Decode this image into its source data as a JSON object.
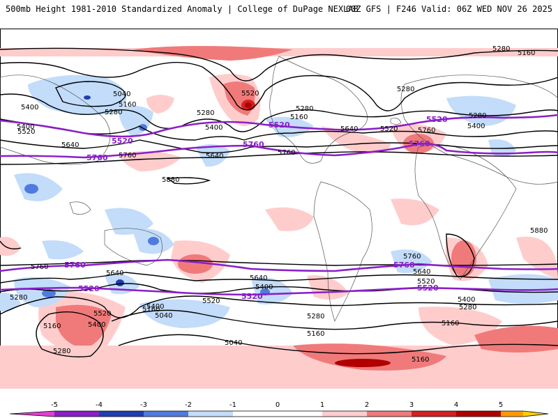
{
  "header": {
    "left_title": "500mb Height 1981-2010 Standardized Anomaly | College of DuPage NEXLAB",
    "right_title": "00Z GFS | F246 Valid: 06Z WED NOV 26 2025"
  },
  "map": {
    "contour_labels": [
      "5280",
      "5160",
      "5040",
      "5520",
      "5400",
      "5640",
      "5760",
      "5880"
    ],
    "labels": [
      {
        "text": "5280",
        "kind": "black"
      },
      {
        "text": "5160",
        "kind": "black"
      },
      {
        "text": "5040",
        "kind": "black"
      },
      {
        "text": "5160",
        "kind": "black"
      },
      {
        "text": "5280",
        "kind": "black"
      },
      {
        "text": "5400",
        "kind": "black"
      },
      {
        "text": "5520",
        "kind": "black"
      },
      {
        "text": "5640",
        "kind": "black"
      },
      {
        "text": "5520",
        "kind": "std"
      },
      {
        "text": "5760",
        "kind": "std"
      },
      {
        "text": "5760",
        "kind": "black"
      },
      {
        "text": "5880",
        "kind": "black"
      },
      {
        "text": "5520",
        "kind": "black"
      },
      {
        "text": "5280",
        "kind": "black"
      },
      {
        "text": "5400",
        "kind": "black"
      },
      {
        "text": "5400",
        "kind": "black"
      },
      {
        "text": "5640",
        "kind": "black"
      },
      {
        "text": "5760",
        "kind": "black"
      },
      {
        "text": "5520",
        "kind": "std"
      },
      {
        "text": "5640",
        "kind": "black"
      },
      {
        "text": "5520",
        "kind": "black"
      },
      {
        "text": "5760",
        "kind": "std"
      },
      {
        "text": "5760",
        "kind": "black"
      },
      {
        "text": "5280",
        "kind": "black"
      },
      {
        "text": "5520",
        "kind": "std"
      },
      {
        "text": "5280",
        "kind": "black"
      },
      {
        "text": "5760",
        "kind": "std"
      },
      {
        "text": "5280",
        "kind": "black"
      },
      {
        "text": "5160",
        "kind": "black"
      },
      {
        "text": "5280",
        "kind": "black"
      },
      {
        "text": "5520",
        "kind": "std"
      },
      {
        "text": "5400",
        "kind": "black"
      },
      {
        "text": "5760",
        "kind": "std"
      },
      {
        "text": "5880",
        "kind": "black"
      },
      {
        "text": "5760",
        "kind": "black"
      },
      {
        "text": "5640",
        "kind": "black"
      },
      {
        "text": "5520",
        "kind": "black"
      },
      {
        "text": "5400",
        "kind": "black"
      },
      {
        "text": "5280",
        "kind": "black"
      },
      {
        "text": "5160",
        "kind": "black"
      },
      {
        "text": "5760",
        "kind": "black"
      },
      {
        "text": "5760",
        "kind": "std"
      },
      {
        "text": "5640",
        "kind": "black"
      },
      {
        "text": "5520",
        "kind": "std"
      },
      {
        "text": "5400",
        "kind": "black"
      },
      {
        "text": "5640",
        "kind": "black"
      },
      {
        "text": "5400",
        "kind": "black"
      },
      {
        "text": "5520",
        "kind": "std"
      },
      {
        "text": "5520",
        "kind": "black"
      },
      {
        "text": "5280",
        "kind": "black"
      },
      {
        "text": "5160",
        "kind": "black"
      },
      {
        "text": "5040",
        "kind": "black"
      },
      {
        "text": "5160",
        "kind": "black"
      },
      {
        "text": "5520",
        "kind": "black"
      },
      {
        "text": "5400",
        "kind": "black"
      },
      {
        "text": "5280",
        "kind": "black"
      },
      {
        "text": "5160",
        "kind": "black"
      },
      {
        "text": "5040",
        "kind": "black"
      },
      {
        "text": "5280",
        "kind": "black"
      },
      {
        "text": "5160",
        "kind": "black"
      },
      {
        "text": "5160",
        "kind": "black"
      }
    ]
  },
  "colorbar": {
    "ticks": [
      "-5",
      "-4",
      "-3",
      "-2",
      "-1",
      "0",
      "1",
      "2",
      "3",
      "4",
      "5"
    ],
    "colors": {
      "neg5": "#e040d0",
      "neg4": "#8a1fc7",
      "neg3": "#1f3fb0",
      "neg2": "#4f7be0",
      "neg1": "#c2dcfa",
      "zero": "#ffffff",
      "pos1": "#ffcccc",
      "pos2": "#f07a7a",
      "pos3": "#d42020",
      "pos4": "#b00000",
      "pos5": "#ff9900",
      "pos6": "#ffd000"
    }
  }
}
